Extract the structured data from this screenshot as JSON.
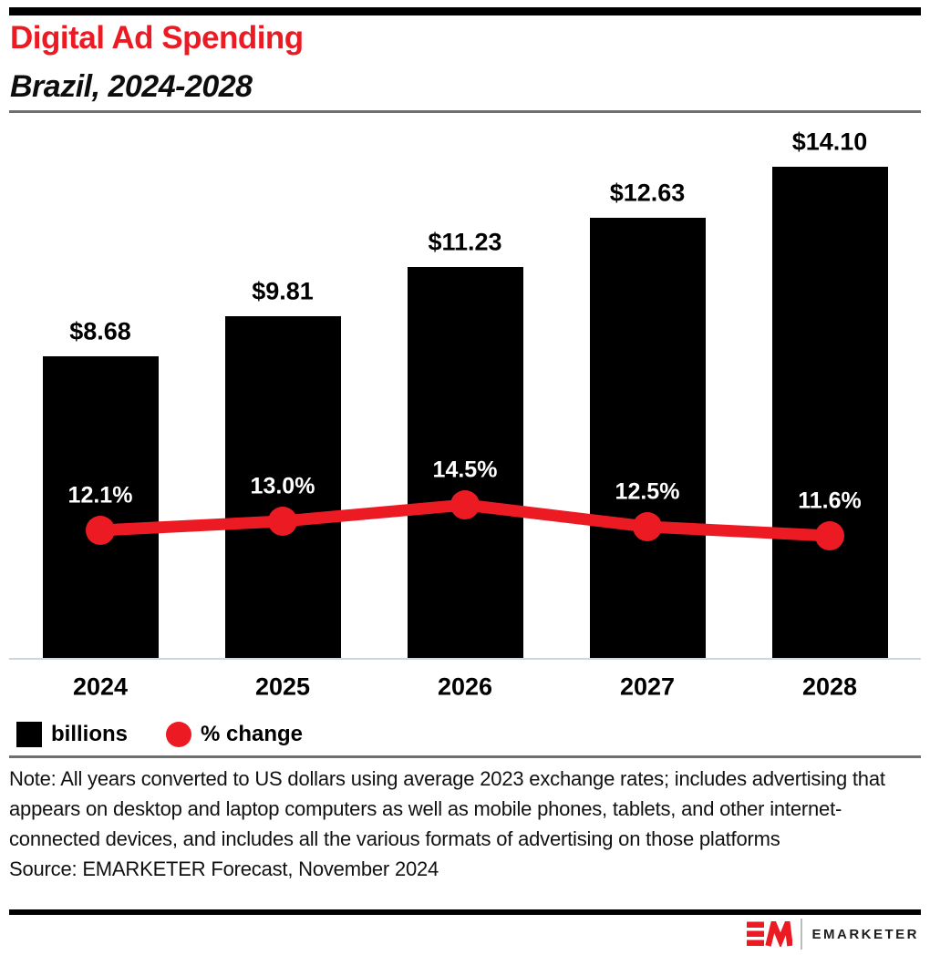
{
  "page": {
    "title": "Digital Ad Spending",
    "subtitle": "Brazil, 2024-2028",
    "note": "Note: All years converted to US dollars using average 2023 exchange rates; includes advertising that appears on desktop and laptop computers as well as mobile phones, tablets, and other internet-connected devices, and includes all the various formats of advertising on those platforms",
    "source": "Source: EMARKETER Forecast, November 2024",
    "brand": {
      "wordmark": "EMARKETER",
      "mark": "em-logo"
    }
  },
  "colors": {
    "accent_red": "#EC1B23",
    "bar_black": "#000000",
    "title_red": "#EC1B23",
    "rule_gray": "#6F6F6F",
    "axis_gray": "#CCD6DE",
    "label_white": "#FFFFFF"
  },
  "legend": [
    {
      "label": "billions",
      "swatch": "black-square"
    },
    {
      "label": "% change",
      "swatch": "red-circle"
    }
  ],
  "chart_data": {
    "type": "bar",
    "subtype": "bar+line combo",
    "title": "Digital Ad Spending",
    "subtitle": "Brazil, 2024-2028",
    "categories": [
      "2024",
      "2025",
      "2026",
      "2027",
      "2028"
    ],
    "series": [
      {
        "name": "billions",
        "type": "bar",
        "unit": "US$ billions",
        "values": [
          8.68,
          9.81,
          11.23,
          12.63,
          14.1
        ],
        "labels": [
          "$8.68",
          "$9.81",
          "$11.23",
          "$12.63",
          "$14.10"
        ],
        "color": "#000000"
      },
      {
        "name": "% change",
        "type": "line",
        "unit": "percent",
        "values": [
          12.1,
          13.0,
          14.5,
          12.5,
          11.6
        ],
        "labels": [
          "12.1%",
          "13.0%",
          "14.5%",
          "12.5%",
          "11.6%"
        ],
        "color": "#EC1B23"
      }
    ],
    "ylim": [
      0,
      15
    ],
    "grid": false,
    "legend_position": "bottom-left",
    "value_labels": "above-marks"
  }
}
